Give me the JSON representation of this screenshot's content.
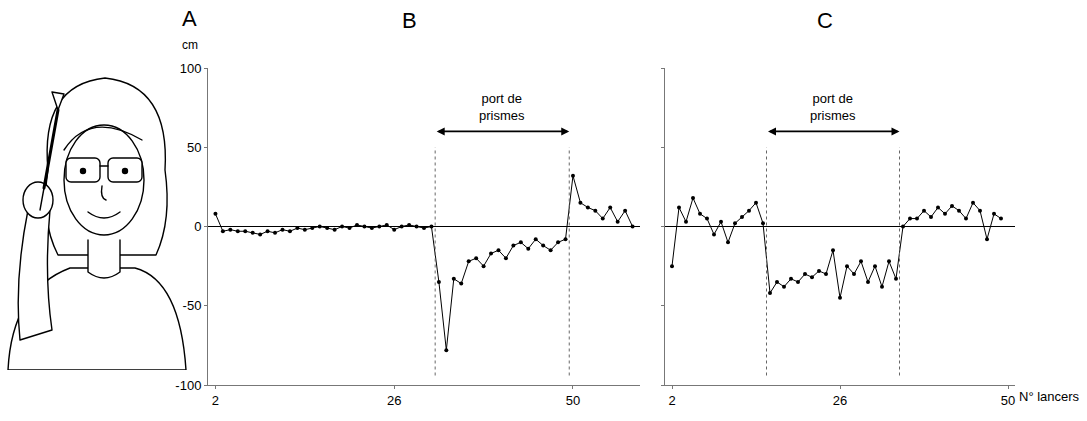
{
  "illustration": {
    "label": "A"
  },
  "chart_data": [
    {
      "type": "line",
      "title": "B",
      "y_label": "cm",
      "x": [
        2,
        3,
        4,
        5,
        6,
        7,
        8,
        9,
        10,
        11,
        12,
        13,
        14,
        15,
        16,
        17,
        18,
        19,
        20,
        21,
        22,
        23,
        24,
        25,
        26,
        27,
        28,
        29,
        30,
        31,
        32,
        33,
        34,
        35,
        36,
        37,
        38,
        39,
        40,
        41,
        42,
        43,
        44,
        45,
        46,
        47,
        48,
        49,
        50,
        51,
        52,
        53,
        54,
        55,
        56,
        57,
        58
      ],
      "values": [
        8,
        -3,
        -2,
        -3,
        -3,
        -4,
        -5,
        -3,
        -4,
        -2,
        -3,
        -1,
        -2,
        -1,
        0,
        -1,
        -2,
        0,
        -1,
        1,
        0,
        -1,
        0,
        1,
        -2,
        0,
        1,
        0,
        -1,
        0,
        -35,
        -78,
        -33,
        -36,
        -22,
        -20,
        -25,
        -17,
        -15,
        -20,
        -12,
        -10,
        -14,
        -8,
        -12,
        -15,
        -10,
        -8,
        32,
        15,
        12,
        10,
        5,
        12,
        3,
        10,
        0
      ],
      "xlim": [
        1,
        59
      ],
      "ylim": [
        -100,
        100
      ],
      "xticks": [
        2,
        26,
        50
      ],
      "yticks": [
        -100,
        -50,
        0,
        50,
        100
      ],
      "tick_labels": true,
      "grid": false,
      "color": "#000000",
      "marker": "circle",
      "line_style": "solid",
      "annotations": [
        {
          "text": "port de prismes",
          "x0": 31.5,
          "x1": 49.5
        }
      ]
    },
    {
      "type": "line",
      "title": "C",
      "x_label": "N° lancers",
      "x": [
        2,
        3,
        4,
        5,
        6,
        7,
        8,
        9,
        10,
        11,
        12,
        13,
        14,
        15,
        16,
        17,
        18,
        19,
        20,
        21,
        22,
        23,
        24,
        25,
        26,
        27,
        28,
        29,
        30,
        31,
        32,
        33,
        34,
        35,
        36,
        37,
        38,
        39,
        40,
        41,
        42,
        43,
        44,
        45,
        46,
        47,
        48,
        49
      ],
      "values": [
        -25,
        12,
        3,
        18,
        8,
        5,
        -5,
        3,
        -10,
        2,
        6,
        10,
        15,
        2,
        -42,
        -35,
        -38,
        -33,
        -35,
        -30,
        -32,
        -28,
        -30,
        -15,
        -45,
        -25,
        -30,
        -22,
        -35,
        -25,
        -38,
        -22,
        -33,
        0,
        5,
        5,
        10,
        6,
        12,
        8,
        13,
        10,
        5,
        15,
        10,
        -8,
        8,
        5
      ],
      "xlim": [
        1,
        51
      ],
      "ylim": [
        -100,
        100
      ],
      "xticks": [
        2,
        26,
        50
      ],
      "yticks": [
        -100,
        -50,
        0,
        50,
        100
      ],
      "tick_labels": "x",
      "grid": false,
      "color": "#000000",
      "marker": "circle",
      "line_style": "solid",
      "annotations": [
        {
          "text": "port de prismes",
          "x0": 15.5,
          "x1": 34.5
        }
      ]
    }
  ]
}
